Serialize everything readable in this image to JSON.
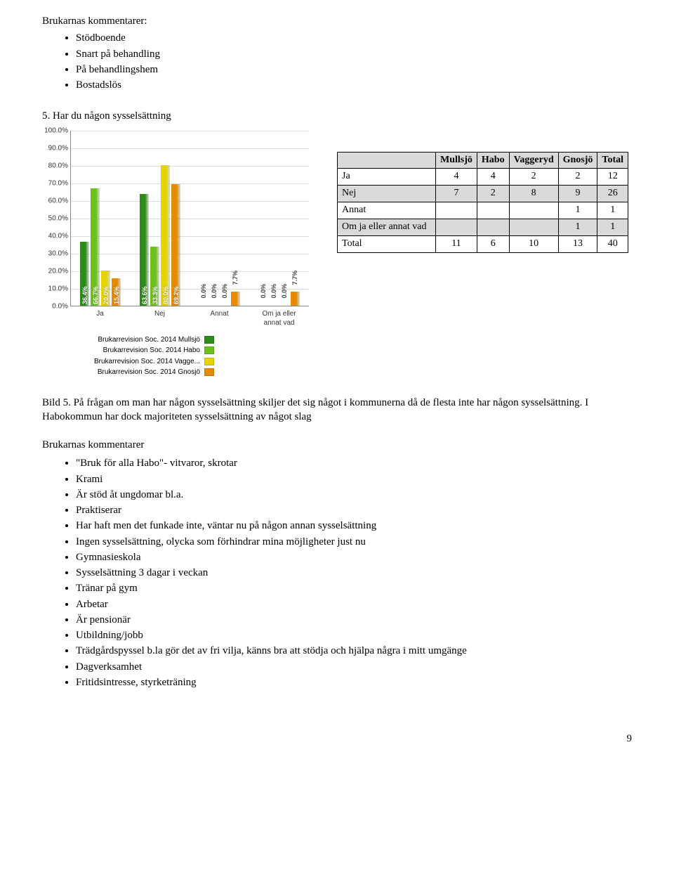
{
  "intro_title": "Brukarnas kommentarer:",
  "intro_items": [
    "Stödboende",
    "Snart på behandling",
    "På behandlingshem",
    "Bostadslös"
  ],
  "question_heading": "5. Har du någon sysselsättning",
  "chart": {
    "type": "bar",
    "ylim": [
      0,
      100
    ],
    "ytick_step": 10,
    "ytick_suffix": "%",
    "categories": [
      "Ja",
      "Nej",
      "Annat",
      "Om ja eller annat vad"
    ],
    "series_labels": [
      "Brukarrevision Soc. 2014 Mullsjö",
      "Brukarrevision Soc. 2014 Habo",
      "Brukarrevision Soc. 2014 Vagge...",
      "Brukarrevision Soc. 2014 Gnosjö"
    ],
    "series_colors": [
      "#2e8b1a",
      "#6cc21a",
      "#e6d400",
      "#e68a00"
    ],
    "values": [
      [
        36.4,
        66.7,
        20.0,
        15.4
      ],
      [
        63.6,
        33.3,
        80.0,
        69.2
      ],
      [
        0.0,
        0.0,
        0.0,
        7.7
      ],
      [
        0.0,
        0.0,
        0.0,
        7.7
      ]
    ],
    "background_color": "#ffffff",
    "grid_color": "#dddddd",
    "label_fontsize": 10
  },
  "table": {
    "columns": [
      "",
      "Mullsjö",
      "Habo",
      "Vaggeryd",
      "Gnosjö",
      "Total"
    ],
    "rows": [
      {
        "label": "Ja",
        "cells": [
          "4",
          "4",
          "2",
          "2",
          "12"
        ],
        "shaded": false
      },
      {
        "label": "Nej",
        "cells": [
          "7",
          "2",
          "8",
          "9",
          "26"
        ],
        "shaded": true
      },
      {
        "label": "Annat",
        "cells": [
          "",
          "",
          "",
          "1",
          "1"
        ],
        "shaded": false
      },
      {
        "label": "Om ja eller annat vad",
        "cells": [
          "",
          "",
          "",
          "1",
          "1"
        ],
        "shaded": true
      },
      {
        "label": "Total",
        "cells": [
          "11",
          "6",
          "10",
          "13",
          "40"
        ],
        "shaded": false
      }
    ]
  },
  "caption": "Bild 5. På frågan om man har någon sysselsättning skiljer det sig något i kommunerna då de flesta inte har någon sysselsättning. I Habokommun har dock majoriteten sysselsättning av något slag",
  "comments_title": "Brukarnas kommentarer",
  "comments": [
    "\"Bruk för alla Habo\"- vitvaror, skrotar",
    "Krami",
    "Är stöd åt ungdomar bl.a.",
    "Praktiserar",
    "Har haft men det funkade inte, väntar nu på någon annan sysselsättning",
    "Ingen sysselsättning, olycka som förhindrar mina möjligheter just nu",
    "Gymnasieskola",
    "Sysselsättning 3 dagar i veckan",
    "Tränar på gym",
    "Arbetar",
    "Är pensionär",
    "Utbildning/jobb",
    "Trädgårdspyssel b.la gör det av fri vilja, känns bra att stödja och hjälpa några i mitt umgänge",
    "Dagverksamhet",
    "Fritidsintresse, styrketräning"
  ],
  "page_number": "9"
}
